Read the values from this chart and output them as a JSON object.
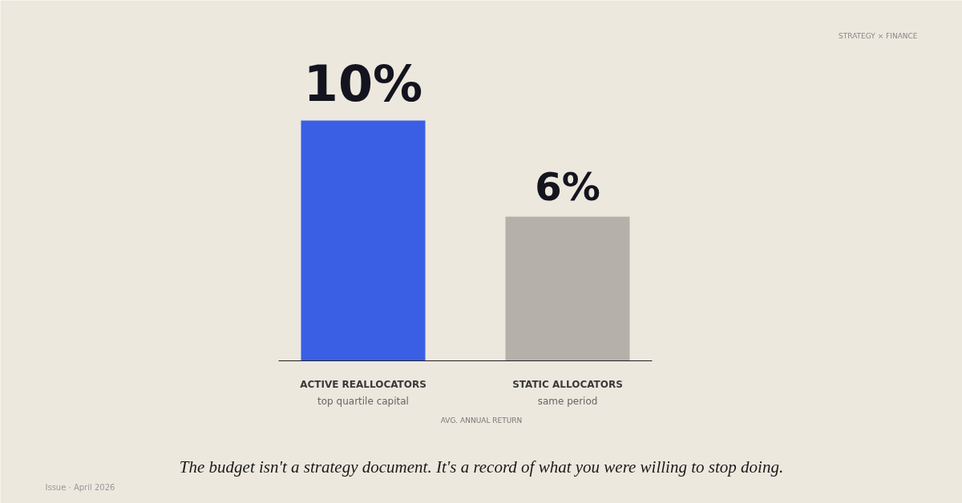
{
  "chart_data": {
    "type": "bar",
    "categories": [
      "ACTIVE REALLOCATORS\ntop quartile capital",
      "STATIC ALLOCATORS\nsame period"
    ],
    "values": [
      10,
      6
    ],
    "colors": [
      "#3a5fe5",
      "#b5b1aa"
    ],
    "value_labels": [
      "10%",
      "6%"
    ],
    "xlabel": "AVG. ANNUAL RETURN",
    "annotations": [
      "STRATEGY × FINANCE",
      "The budget isn't a strategy document. It's a record of what you were willing to stop doing.",
      "Issue · April 2026"
    ],
    "grid": false
  }
}
